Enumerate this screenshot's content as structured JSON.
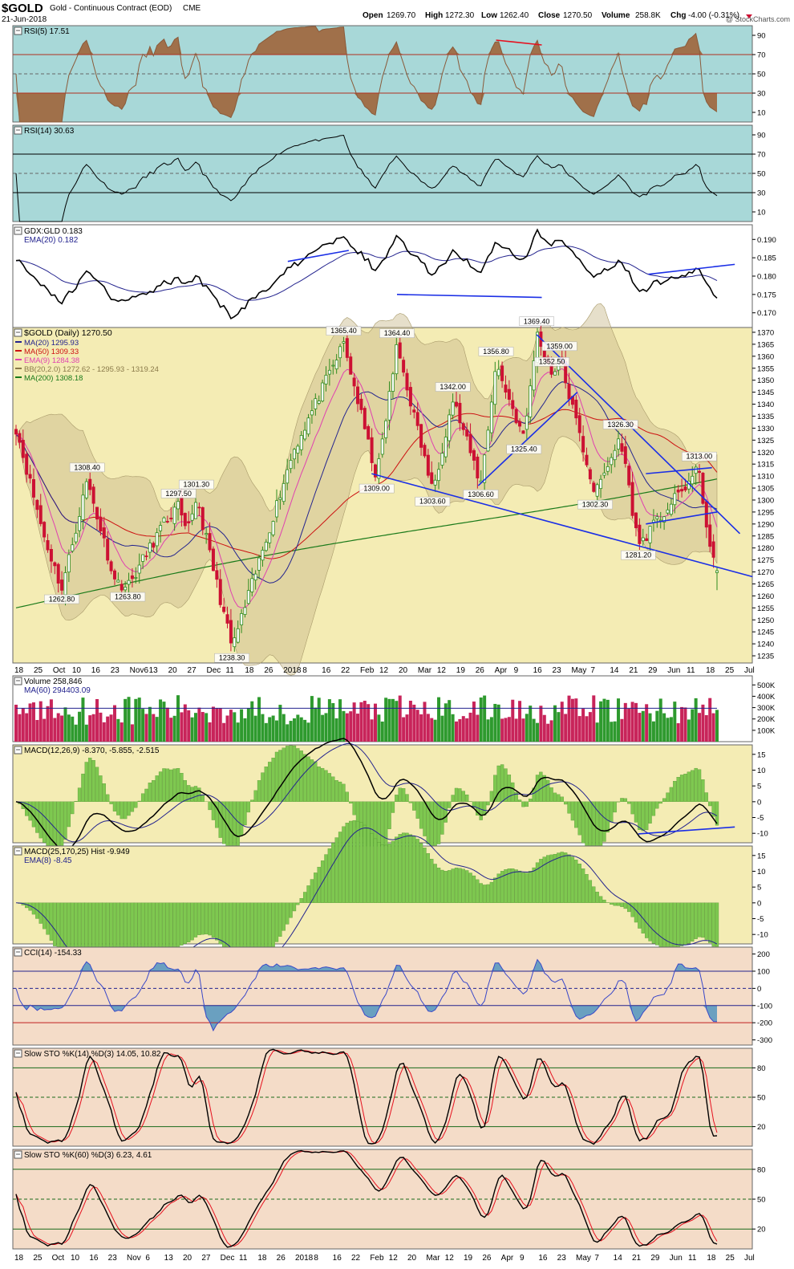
{
  "header": {
    "symbol": "$GOLD",
    "name": "Gold - Continuous Contract (EOD)",
    "exchange": "CME",
    "date": "21-Jun-2018",
    "watermark": "@ StockCharts.com",
    "ohlc": {
      "open_label": "Open",
      "open": "1269.70",
      "high_label": "High",
      "high": "1272.30",
      "low_label": "Low",
      "low": "1262.40",
      "close_label": "Close",
      "close": "1270.50",
      "volume_label": "Volume",
      "volume": "258.8K",
      "chg_label": "Chg",
      "chg": "-4.00 (-0.31%)"
    }
  },
  "colors": {
    "up": "#2e8b1e",
    "down": "#cc1133",
    "blue_line": "#1a2ee6",
    "red_line": "#e6101e",
    "rsi5_bg": "#a8d8d8",
    "rsi14_bg": "#a8d8d8",
    "ratio_bg": "#ffffff",
    "price_bg": "#f4ecb4",
    "volume_bg": "#ffffff",
    "macd_bg": "#f4ecb4",
    "macd2_bg": "#f4ecb4",
    "cci_bg": "#f4dcc8",
    "sto_bg": "#f4dcc8"
  },
  "x_axis": {
    "labels_top": [
      "18",
      "25",
      "Oct",
      "10",
      "16",
      "23",
      "Nov6",
      "13",
      "20",
      "27",
      "Dec",
      "11",
      "18",
      "26",
      "2018",
      "8",
      "16",
      "22",
      "Feb",
      "12",
      "20",
      "Mar",
      "12",
      "19",
      "26",
      "Apr",
      "9",
      "16",
      "23",
      "May",
      "7",
      "14",
      "21",
      "29",
      "Jun",
      "11",
      "18",
      "25",
      "Jul"
    ],
    "labels_bottom": [
      "18",
      "25",
      "Oct",
      "10",
      "16",
      "23",
      "Nov",
      "6",
      "13",
      "20",
      "27",
      "Dec",
      "11",
      "18",
      "26",
      "2018",
      "8",
      "16",
      "22",
      "Feb",
      "12",
      "20",
      "Mar",
      "12",
      "19",
      "26",
      "Apr",
      "9",
      "16",
      "23",
      "May",
      "7",
      "14",
      "21",
      "29",
      "Jun",
      "11",
      "18",
      "25",
      "Jul"
    ]
  },
  "panels": {
    "rsi5": {
      "label": "RSI(5) 17.51",
      "ticks": [
        "90",
        "70",
        "50",
        "30",
        "10"
      ],
      "last": 17.51
    },
    "rsi14": {
      "label": "RSI(14) 30.63",
      "ticks": [
        "90",
        "70",
        "50",
        "30",
        "10"
      ],
      "last": 30.63
    },
    "ratio": {
      "label": "GDX:GLD 0.183",
      "ema_label": "EMA(20) 0.182",
      "ticks": [
        "0.190",
        "0.185",
        "0.180",
        "0.175",
        "0.170"
      ]
    },
    "price": {
      "title": "$GOLD (Daily) 1270.50",
      "legend": [
        {
          "text": "MA(20) 1295.93",
          "color": "#23238e"
        },
        {
          "text": "MA(50) 1309.33",
          "color": "#cc1111"
        },
        {
          "text": "EMA(9) 1284.38",
          "color": "#e040b0"
        },
        {
          "text": "BB(20,2.0) 1272.62 - 1295.93 - 1319.24",
          "color": "#8a7a4a"
        },
        {
          "text": "MA(200) 1308.18",
          "color": "#1a7a1a"
        }
      ],
      "ticks": [
        "1370",
        "1365",
        "1360",
        "1355",
        "1350",
        "1345",
        "1340",
        "1335",
        "1330",
        "1325",
        "1320",
        "1315",
        "1310",
        "1305",
        "1300",
        "1295",
        "1290",
        "1285",
        "1280",
        "1275",
        "1270",
        "1265",
        "1260",
        "1255",
        "1250",
        "1245",
        "1240",
        "1235"
      ],
      "annotations": [
        "1308.40",
        "1262.80",
        "1263.80",
        "1297.50",
        "1301.30",
        "1238.30",
        "1365.40",
        "1364.40",
        "1309.00",
        "1342.00",
        "1303.60",
        "1356.80",
        "1352.50",
        "1325.40",
        "1306.60",
        "1369.40",
        "1359.00",
        "1326.30",
        "1302.30",
        "1281.20",
        "1313.00"
      ]
    },
    "volume": {
      "label": "Volume 258,846",
      "ma_label": "MA(60) 294403.09",
      "ticks": [
        "500K",
        "400K",
        "300K",
        "200K",
        "100K"
      ]
    },
    "macd": {
      "label": "MACD(12,26,9) -8.370, -5.855, -2.515",
      "ticks": [
        "15",
        "10",
        "5",
        "0",
        "-5",
        "-10"
      ]
    },
    "macd2": {
      "label": "MACD(25,170,25) Hist -9.949",
      "ema_label": "EMA(8) -8.45",
      "ticks": [
        "15",
        "10",
        "5",
        "0",
        "-5",
        "-10"
      ]
    },
    "cci": {
      "label": "CCI(14) -154.33",
      "ticks": [
        "200",
        "100",
        "0",
        "-100",
        "-200",
        "-300"
      ]
    },
    "sto14": {
      "label": "Slow STO %K(14) %D(3) 14.05, 10.82",
      "ticks": [
        "80",
        "50",
        "20"
      ]
    },
    "sto60": {
      "label": "Slow STO %K(60) %D(3) 6.23, 4.61",
      "ticks": [
        "80",
        "50",
        "20"
      ]
    }
  },
  "chart_data": {
    "type": "line",
    "title": "$GOLD Gold - Continuous Contract (EOD) CME",
    "x_range": [
      "2017-09-18",
      "2018-07-01"
    ],
    "price_range": [
      1235,
      1372
    ],
    "price_pivots": [
      {
        "x": "2017-09-18",
        "y": 1330
      },
      {
        "x": "2017-09-29",
        "y": 1285
      },
      {
        "x": "2017-10-06",
        "y": 1262.8
      },
      {
        "x": "2017-10-16",
        "y": 1308.4
      },
      {
        "x": "2017-10-27",
        "y": 1266
      },
      {
        "x": "2017-11-01",
        "y": 1263.8
      },
      {
        "x": "2017-11-15",
        "y": 1290
      },
      {
        "x": "2017-11-21",
        "y": 1297.5
      },
      {
        "x": "2017-11-24",
        "y": 1285
      },
      {
        "x": "2017-11-28",
        "y": 1301.3
      },
      {
        "x": "2017-12-12",
        "y": 1238.3
      },
      {
        "x": "2017-12-20",
        "y": 1265
      },
      {
        "x": "2018-01-05",
        "y": 1320
      },
      {
        "x": "2018-01-25",
        "y": 1365.4
      },
      {
        "x": "2018-02-07",
        "y": 1309
      },
      {
        "x": "2018-02-15",
        "y": 1364.4
      },
      {
        "x": "2018-03-01",
        "y": 1303.6
      },
      {
        "x": "2018-03-09",
        "y": 1342
      },
      {
        "x": "2018-03-20",
        "y": 1306.6
      },
      {
        "x": "2018-03-26",
        "y": 1356.8
      },
      {
        "x": "2018-04-06",
        "y": 1325.4
      },
      {
        "x": "2018-04-11",
        "y": 1369.4
      },
      {
        "x": "2018-04-17",
        "y": 1352.5
      },
      {
        "x": "2018-04-20",
        "y": 1359
      },
      {
        "x": "2018-05-04",
        "y": 1302.3
      },
      {
        "x": "2018-05-14",
        "y": 1326.3
      },
      {
        "x": "2018-05-21",
        "y": 1281.2
      },
      {
        "x": "2018-06-14",
        "y": 1313
      },
      {
        "x": "2018-06-18",
        "y": 1279
      },
      {
        "x": "2018-06-21",
        "y": 1270.5
      }
    ],
    "last": {
      "open": 1269.7,
      "high": 1272.3,
      "low": 1262.4,
      "close": 1270.5,
      "volume": 258846
    },
    "indicators": {
      "RSI5": 17.51,
      "RSI14": 30.63,
      "GDX_GLD": 0.183,
      "GDX_GLD_EMA20": 0.182,
      "MA20": 1295.93,
      "MA50": 1309.33,
      "EMA9": 1284.38,
      "BB_lower": 1272.62,
      "BB_upper": 1319.24,
      "MA200": 1308.18,
      "Volume_MA60": 294403.09,
      "MACD": -8.37,
      "MACD_signal": -5.855,
      "MACD_hist": -2.515,
      "MACD_25_170_hist": -9.949,
      "MACD_25_170_EMA8": -8.45,
      "CCI14": -154.33,
      "STO14_K": 14.05,
      "STO14_D": 10.82,
      "STO60_K": 6.23,
      "STO60_D": 4.61
    }
  }
}
